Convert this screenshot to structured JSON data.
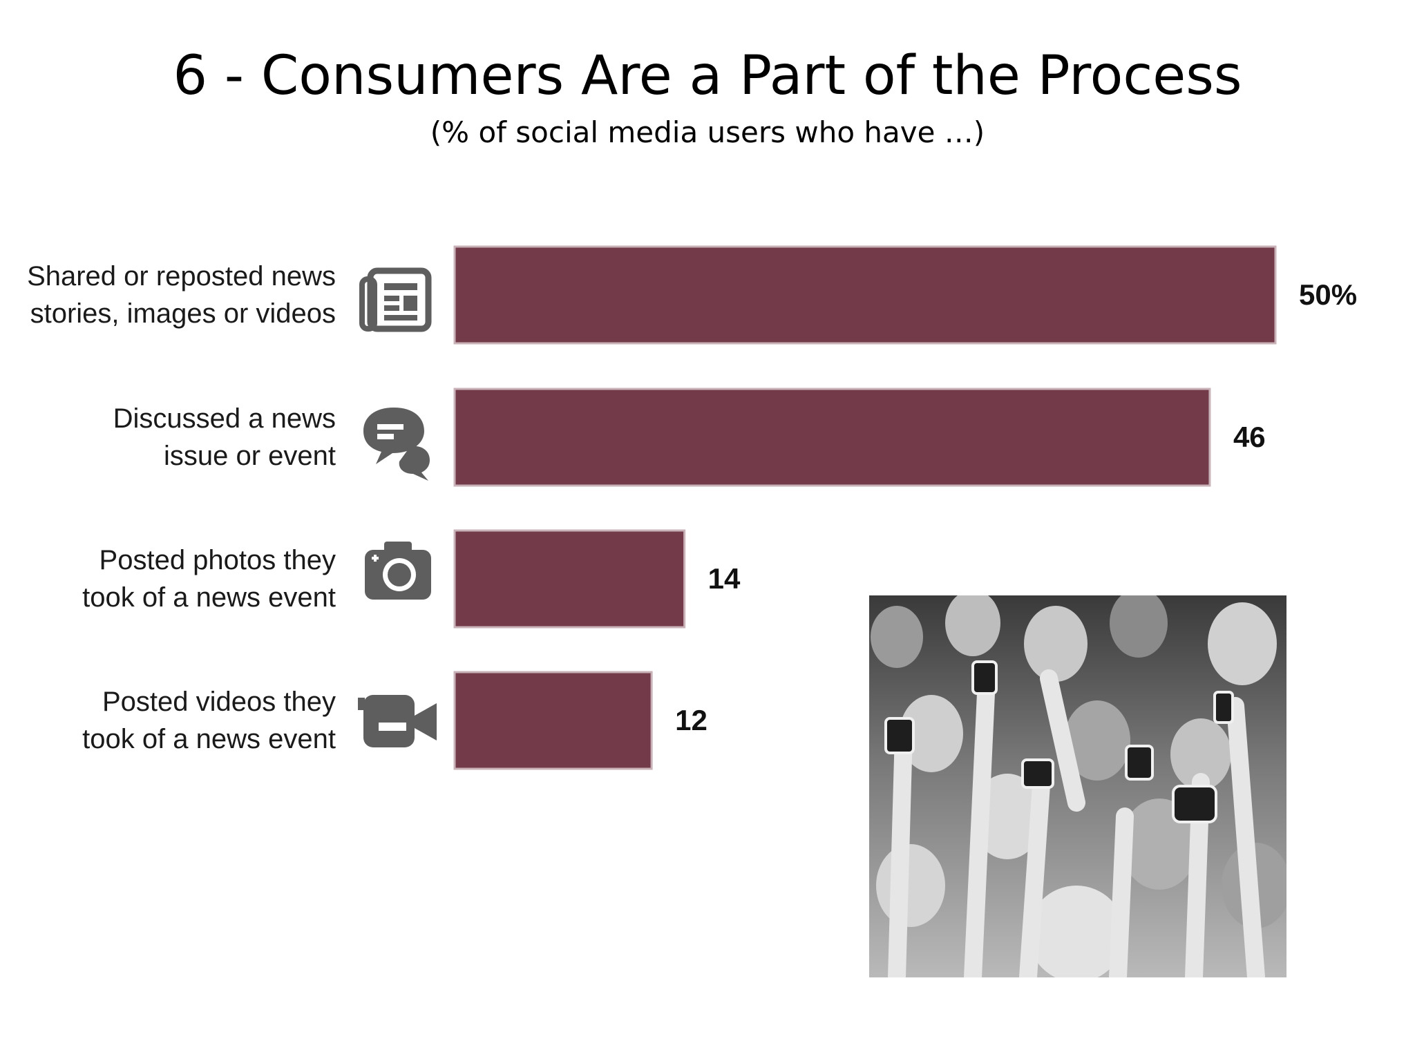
{
  "slide": {
    "title": "6 - Consumers Are a Part of the Process",
    "subtitle": "(% of social media users who have …)"
  },
  "chart_data": {
    "type": "bar",
    "orientation": "horizontal",
    "title": "6 - Consumers Are a Part of the Process",
    "subtitle": "(% of social media users who have …)",
    "categories": [
      "Shared or reposted news stories, images or videos",
      "Discussed a news issue or event",
      "Posted photos they took of a news event",
      "Posted videos they took of a news event"
    ],
    "category_lines": [
      [
        "Shared or reposted news",
        "stories, images or videos"
      ],
      [
        "Discussed a news",
        "issue or event"
      ],
      [
        "Posted photos they",
        "took of a news event"
      ],
      [
        "Posted videos they",
        "took of a news event"
      ]
    ],
    "values": [
      50,
      46,
      14,
      12
    ],
    "value_labels": [
      "50%",
      "46",
      "14",
      "12"
    ],
    "icons": [
      "newspaper-icon",
      "chat-bubbles-icon",
      "camera-icon",
      "video-camera-icon"
    ],
    "xlim": [
      0,
      50
    ],
    "grid": false,
    "legend": "none",
    "colors": {
      "bar": "#733b4a",
      "bar_edge": "#c9b3b9",
      "icon": "#5e5e5e"
    }
  },
  "photo": {
    "icon": "crowd-taking-photos-image",
    "desc_name": "crowd-photo"
  }
}
